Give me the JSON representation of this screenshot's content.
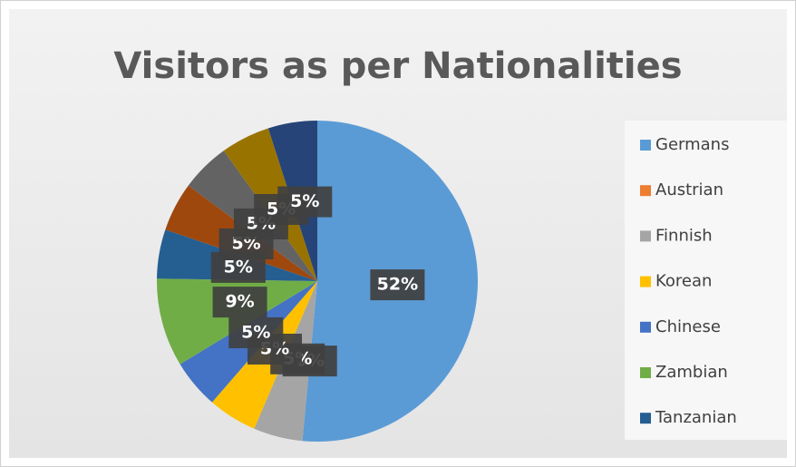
{
  "chart_data": {
    "type": "pie",
    "title": "Visitors as per Nationalities",
    "categories": [
      "Germans",
      "Austrian",
      "Finnish",
      "Korean",
      "Chinese",
      "Zambian",
      "Tanzanian",
      null,
      null,
      null,
      null
    ],
    "values": [
      52,
      0,
      5,
      5,
      5,
      9,
      5,
      5,
      5,
      5,
      5
    ],
    "value_labels": [
      "52%",
      "0%",
      "5%",
      "5%",
      "5%",
      "9%",
      "5%",
      "5%",
      "5%",
      "5%",
      "5%"
    ],
    "colors": [
      "#5b9bd5",
      "#ed7d31",
      "#a5a5a5",
      "#ffc000",
      "#4472c4",
      "#70ad47",
      "#255e91",
      "#9e480e",
      "#636363",
      "#997300",
      "#264478"
    ],
    "legend": "right"
  }
}
